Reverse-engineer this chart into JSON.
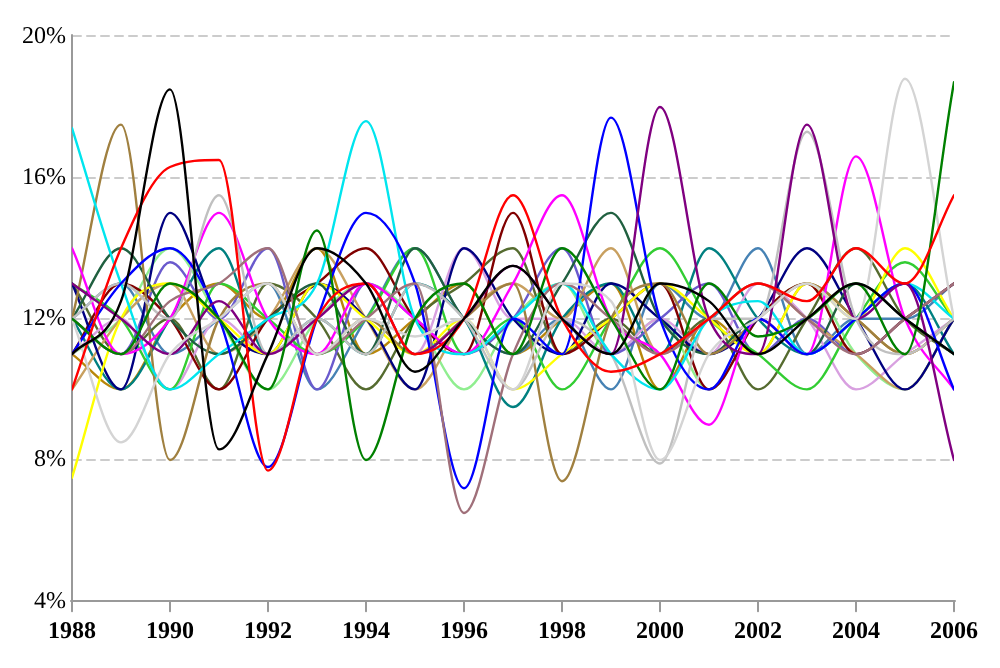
{
  "chart_data": {
    "type": "line",
    "x": [
      1988,
      1989,
      1990,
      1991,
      1992,
      1993,
      1994,
      1995,
      1996,
      1997,
      1998,
      1999,
      2000,
      2001,
      2002,
      2003,
      2004,
      2005,
      2006
    ],
    "xlim": [
      1988,
      2006
    ],
    "xticks": [
      1988,
      1990,
      1992,
      1994,
      1996,
      1998,
      2000,
      2002,
      2004,
      2006
    ],
    "ylim": [
      4,
      20
    ],
    "yticks": [
      {
        "value": 4,
        "label": "4%"
      },
      {
        "value": 8,
        "label": "8%"
      },
      {
        "value": 12,
        "label": "12%"
      },
      {
        "value": 16,
        "label": "16%"
      },
      {
        "value": 20,
        "label": "20%"
      }
    ],
    "grid": "y",
    "legend": false,
    "marker": "none",
    "line_style": "solid",
    "series": [
      {
        "color": "#000000",
        "values": [
          11,
          12.5,
          18.5,
          8.3,
          11,
          14,
          13,
          10.5,
          12,
          13.5,
          12,
          11,
          13,
          12.5,
          11,
          12,
          13,
          12,
          11
        ]
      },
      {
        "color": "#ff0000",
        "values": [
          10,
          14,
          16.3,
          16.5,
          7.7,
          12,
          13,
          11,
          12,
          15.5,
          12,
          10.5,
          11,
          12,
          13,
          12.5,
          14,
          13,
          15.5
        ]
      },
      {
        "color": "#008000",
        "values": [
          12,
          11,
          13,
          12,
          10,
          14.5,
          8,
          12,
          13,
          11,
          14,
          12,
          10,
          13,
          11.5,
          12,
          13,
          11,
          18.7
        ]
      },
      {
        "color": "#d4d4d4",
        "values": [
          12,
          8.5,
          11,
          12,
          13,
          11,
          12,
          11.5,
          12,
          10,
          13,
          12.5,
          8,
          11,
          12,
          13,
          12,
          18.8,
          12
        ]
      },
      {
        "color": "#800080",
        "values": [
          13,
          12,
          11,
          12.5,
          11,
          12,
          13,
          11,
          12,
          13.5,
          12,
          11,
          18,
          12,
          11,
          17.5,
          12,
          13,
          8
        ]
      },
      {
        "color": "#a0707a",
        "values": [
          12,
          11,
          12.5,
          13,
          14,
          11,
          12,
          13,
          6.5,
          11,
          13,
          12,
          11,
          12,
          13,
          12,
          11,
          12,
          13
        ]
      },
      {
        "color": "#0000ff",
        "values": [
          11,
          13,
          14,
          12,
          7.8,
          12,
          15,
          13,
          7.2,
          12,
          11,
          17.7,
          12,
          10,
          12,
          11,
          12,
          13,
          10
        ]
      },
      {
        "color": "#00e5ee",
        "values": [
          17.4,
          13,
          10,
          11,
          12,
          13,
          17.6,
          12,
          11,
          12,
          13,
          11,
          10,
          12,
          12.5,
          11,
          12,
          13,
          12
        ]
      },
      {
        "color": "#c0c0c0",
        "values": [
          12,
          13,
          12,
          15.5,
          11,
          12,
          11,
          13,
          12,
          10,
          12,
          11,
          7.9,
          12,
          12,
          17.3,
          12,
          11,
          12
        ]
      },
      {
        "color": "#ff00ff",
        "values": [
          14,
          11,
          12,
          15,
          12,
          11,
          13,
          12,
          11,
          13,
          15.5,
          12,
          11,
          9,
          12,
          11,
          16.6,
          12,
          10
        ]
      },
      {
        "color": "#a08040",
        "values": [
          12,
          17.5,
          8,
          12,
          13,
          11,
          12,
          11,
          12,
          13,
          7.4,
          12,
          13,
          11,
          12,
          13,
          12,
          11,
          12
        ]
      },
      {
        "color": "#206040",
        "values": [
          12,
          14,
          12,
          11,
          12,
          13,
          11,
          14,
          12,
          11,
          13,
          15,
          12,
          11,
          12,
          11,
          13,
          12,
          11
        ]
      },
      {
        "color": "#ffff00",
        "values": [
          7.5,
          12,
          13,
          12,
          11,
          13,
          12,
          11,
          12,
          10,
          11,
          12,
          13,
          12,
          11,
          13,
          12,
          14,
          12
        ]
      },
      {
        "color": "#000080",
        "values": [
          13,
          10,
          15,
          12,
          11,
          13,
          12,
          10,
          14,
          12,
          11,
          13,
          12,
          11,
          12,
          14,
          12,
          10,
          12
        ]
      },
      {
        "color": "#800000",
        "values": [
          11,
          13,
          12,
          10,
          12,
          13,
          14,
          12,
          11,
          15,
          11,
          12,
          13,
          10,
          12,
          13,
          11,
          12,
          13
        ]
      },
      {
        "color": "#32cd32",
        "values": [
          13,
          12,
          10,
          13,
          12,
          11,
          12,
          14,
          11,
          12,
          10,
          12,
          14,
          12,
          11,
          10,
          12,
          13.6,
          12
        ]
      },
      {
        "color": "#c8a060",
        "values": [
          10,
          12,
          13,
          11,
          12,
          14,
          12,
          10,
          12,
          13,
          12,
          14,
          11,
          12,
          13,
          12,
          11,
          10,
          12
        ]
      },
      {
        "color": "#6a5acd",
        "values": [
          12,
          11,
          13.6,
          12,
          14,
          10,
          13,
          12,
          11,
          12,
          14,
          11,
          12,
          13,
          11,
          12,
          11,
          12,
          13
        ]
      },
      {
        "color": "#d8a0e0",
        "values": [
          11,
          12,
          10,
          12,
          11,
          12,
          13,
          11,
          14,
          12,
          12,
          11,
          12,
          11,
          13,
          12,
          10,
          11,
          12
        ]
      },
      {
        "color": "#008080",
        "values": [
          12,
          10,
          12,
          14,
          11,
          12,
          11,
          13,
          12,
          9.5,
          12,
          13,
          11,
          14,
          12,
          11,
          12,
          13,
          11
        ]
      },
      {
        "color": "#556b2f",
        "values": [
          13,
          11,
          12,
          10,
          13,
          12,
          10,
          12,
          13,
          14,
          11,
          12,
          11,
          12,
          10,
          12,
          14,
          12,
          11
        ]
      },
      {
        "color": "#90ee90",
        "values": [
          11,
          12,
          14,
          12,
          10,
          12,
          13,
          12,
          10,
          12,
          13,
          11,
          12,
          10,
          12,
          13,
          11,
          10,
          12
        ]
      },
      {
        "color": "#4682b4",
        "values": [
          12,
          13,
          11,
          12,
          13,
          10,
          12,
          14,
          12,
          11,
          12,
          10,
          13,
          12,
          14,
          11,
          12,
          12,
          13
        ]
      },
      {
        "color": "#b8860b",
        "values": [
          11,
          10,
          12,
          13,
          12,
          14,
          11,
          12,
          13,
          11,
          12,
          13,
          10,
          12,
          11,
          13,
          12,
          11,
          12
        ]
      }
    ]
  }
}
